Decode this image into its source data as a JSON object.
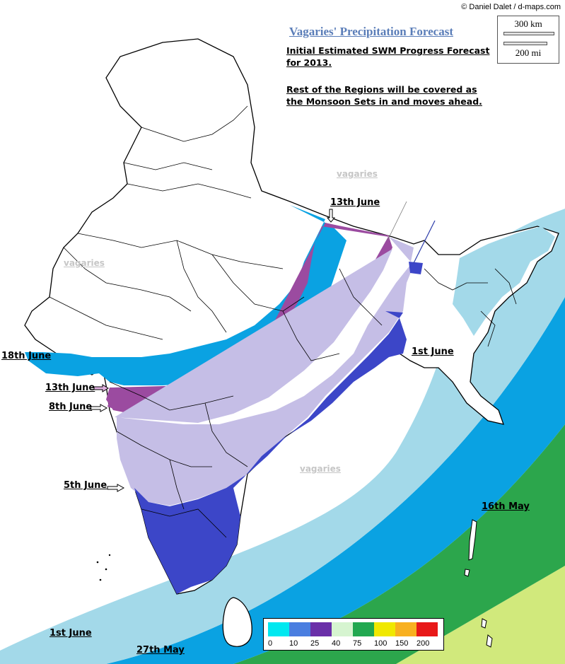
{
  "credit": "© Daniel Dalet / d-maps.com",
  "title": "Vagaries' Precipitation Forecast",
  "notes": {
    "line1": "Initial Estimated SWM Progress Forecast",
    "line2": "for 2013.",
    "line3": "Rest of the Regions will be covered as",
    "line4": "the Monsoon Sets in and moves ahead."
  },
  "scale": {
    "km": "300 km",
    "mi": "200 mi"
  },
  "watermarks": [
    "vagaries",
    "vagaries",
    "vagaries"
  ],
  "date_labels": {
    "june13_north": "13th June",
    "june18": "18th June",
    "june13_west": "13th June",
    "june8": "8th June",
    "june1_east": "1st June",
    "june5": "5th June",
    "may16": "16th May",
    "june1_south": "1st June",
    "may27": "27th May"
  },
  "legend": {
    "ticks": [
      "0",
      "10",
      "25",
      "40",
      "75",
      "100",
      "150",
      "200"
    ],
    "colors": [
      "#00e8f0",
      "#4a7ee0",
      "#6a2fa8",
      "#d6f4d0",
      "#22a850",
      "#f0e800",
      "#f8b020",
      "#e81818"
    ]
  },
  "band_colors": {
    "purple": "#9b4ba0",
    "lavender": "#c5bee6",
    "blue": "#3c46c8",
    "cyan": "#0aa2e2",
    "light_blue": "#a3d9e9",
    "green": "#2ca64c",
    "light_green": "#d1e97c"
  }
}
